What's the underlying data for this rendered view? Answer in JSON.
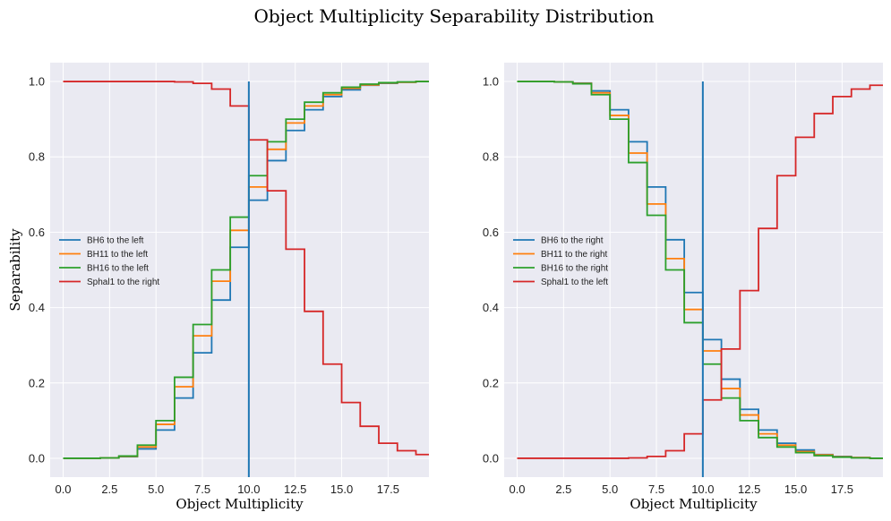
{
  "figure": {
    "title": "Object Multiplicity Separability Distribution"
  },
  "colors": {
    "axes_bg": "#EAEAF2",
    "grid": "#FFFFFF",
    "blue": "#1F77B4",
    "orange": "#FF7F0E",
    "green": "#2CA02C",
    "red": "#D62728"
  },
  "chart_data": [
    {
      "type": "line",
      "subtype": "step",
      "xlabel": "Object Multiplicity",
      "ylabel": "Separability",
      "xlim": [
        -0.7,
        19.7
      ],
      "ylim": [
        -0.05,
        1.05
      ],
      "xticks": [
        0.0,
        2.5,
        5.0,
        7.5,
        10.0,
        12.5,
        15.0,
        17.5
      ],
      "xtick_labels": [
        "0.0",
        "2.5",
        "5.0",
        "7.5",
        "10.0",
        "12.5",
        "15.0",
        "17.5"
      ],
      "yticks": [
        0.0,
        0.2,
        0.4,
        0.6,
        0.8,
        1.0
      ],
      "ytick_labels": [
        "0.0",
        "0.2",
        "0.4",
        "0.6",
        "0.8",
        "1.0"
      ],
      "grid": true,
      "legend_position": "center-left",
      "vline": {
        "x": 10,
        "color": "#1F77B4"
      },
      "x": [
        0,
        1,
        2,
        3,
        4,
        5,
        6,
        7,
        8,
        9,
        10,
        11,
        12,
        13,
        14,
        15,
        16,
        17,
        18,
        19,
        20
      ],
      "series": [
        {
          "name": "BH6 to the left",
          "color": "#1F77B4",
          "values": [
            0.0,
            0.0,
            0.001,
            0.004,
            0.025,
            0.075,
            0.16,
            0.28,
            0.42,
            0.56,
            0.685,
            0.79,
            0.87,
            0.925,
            0.96,
            0.978,
            0.99,
            0.995,
            0.998,
            1.0,
            1.0
          ]
        },
        {
          "name": "BH11 to the left",
          "color": "#FF7F0E",
          "values": [
            0.0,
            0.0,
            0.001,
            0.005,
            0.03,
            0.09,
            0.19,
            0.325,
            0.47,
            0.605,
            0.72,
            0.82,
            0.89,
            0.935,
            0.965,
            0.982,
            0.991,
            0.996,
            0.998,
            1.0,
            1.0
          ]
        },
        {
          "name": "BH16 to the left",
          "color": "#2CA02C",
          "values": [
            0.0,
            0.0,
            0.001,
            0.006,
            0.035,
            0.1,
            0.215,
            0.355,
            0.5,
            0.64,
            0.75,
            0.84,
            0.9,
            0.945,
            0.97,
            0.985,
            0.993,
            0.997,
            0.999,
            1.0,
            1.0
          ]
        },
        {
          "name": "Sphal1 to the right",
          "color": "#D62728",
          "values": [
            1.0,
            1.0,
            1.0,
            1.0,
            1.0,
            1.0,
            0.999,
            0.995,
            0.98,
            0.935,
            0.845,
            0.71,
            0.555,
            0.39,
            0.25,
            0.148,
            0.085,
            0.04,
            0.02,
            0.01,
            0.005
          ]
        }
      ]
    },
    {
      "type": "line",
      "subtype": "step",
      "xlabel": "Object Multiplicity",
      "ylabel": "",
      "xlim": [
        -0.7,
        19.7
      ],
      "ylim": [
        -0.05,
        1.05
      ],
      "xticks": [
        0.0,
        2.5,
        5.0,
        7.5,
        10.0,
        12.5,
        15.0,
        17.5
      ],
      "xtick_labels": [
        "0.0",
        "2.5",
        "5.0",
        "7.5",
        "10.0",
        "12.5",
        "15.0",
        "17.5"
      ],
      "yticks": [
        0.0,
        0.2,
        0.4,
        0.6,
        0.8,
        1.0
      ],
      "ytick_labels": [
        "0.0",
        "0.2",
        "0.4",
        "0.6",
        "0.8",
        "1.0"
      ],
      "grid": true,
      "legend_position": "center-left",
      "vline": {
        "x": 10,
        "color": "#1F77B4"
      },
      "x": [
        0,
        1,
        2,
        3,
        4,
        5,
        6,
        7,
        8,
        9,
        10,
        11,
        12,
        13,
        14,
        15,
        16,
        17,
        18,
        19,
        20
      ],
      "series": [
        {
          "name": "BH6 to the right",
          "color": "#1F77B4",
          "values": [
            1.0,
            1.0,
            0.999,
            0.996,
            0.975,
            0.925,
            0.84,
            0.72,
            0.58,
            0.44,
            0.315,
            0.21,
            0.13,
            0.075,
            0.04,
            0.022,
            0.01,
            0.005,
            0.002,
            0.0,
            0.0
          ]
        },
        {
          "name": "BH11 to the right",
          "color": "#FF7F0E",
          "values": [
            1.0,
            1.0,
            0.999,
            0.995,
            0.97,
            0.91,
            0.81,
            0.675,
            0.53,
            0.395,
            0.285,
            0.185,
            0.115,
            0.065,
            0.035,
            0.018,
            0.009,
            0.004,
            0.002,
            0.0,
            0.0
          ]
        },
        {
          "name": "BH16 to the right",
          "color": "#2CA02C",
          "values": [
            1.0,
            1.0,
            0.999,
            0.994,
            0.965,
            0.9,
            0.785,
            0.645,
            0.5,
            0.36,
            0.25,
            0.16,
            0.1,
            0.055,
            0.03,
            0.015,
            0.007,
            0.003,
            0.001,
            0.0,
            0.0
          ]
        },
        {
          "name": "Sphal1 to the left",
          "color": "#D62728",
          "values": [
            0.0,
            0.0,
            0.0,
            0.0,
            0.0,
            0.0,
            0.001,
            0.005,
            0.02,
            0.065,
            0.155,
            0.29,
            0.445,
            0.61,
            0.75,
            0.852,
            0.915,
            0.96,
            0.98,
            0.99,
            0.995
          ]
        }
      ]
    }
  ]
}
